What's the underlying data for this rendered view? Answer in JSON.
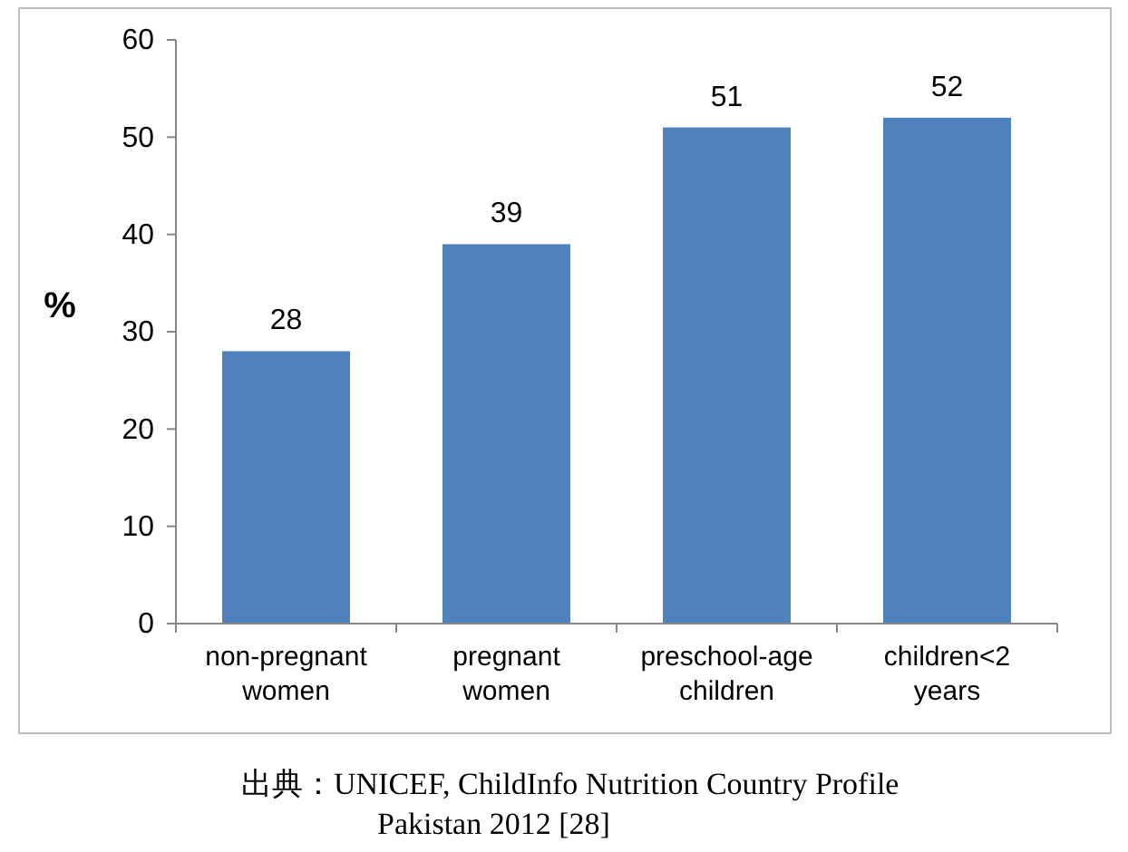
{
  "chart_data": {
    "type": "bar",
    "categories": [
      "non-pregnant\nwomen",
      "pregnant\nwomen",
      "preschool-age\nchildren",
      "children<2\nyears"
    ],
    "values": [
      28,
      39,
      51,
      52
    ],
    "color": "#4f81bd",
    "ylabel": "%",
    "ylim": [
      0,
      60
    ],
    "yticks": [
      0,
      10,
      20,
      30,
      40,
      50,
      60
    ],
    "grid": false,
    "data_labels": true,
    "annotations": [
      "出典：UNICEF, ChildInfo Nutrition Country Profile\nPakistan 2012 [28]"
    ]
  }
}
